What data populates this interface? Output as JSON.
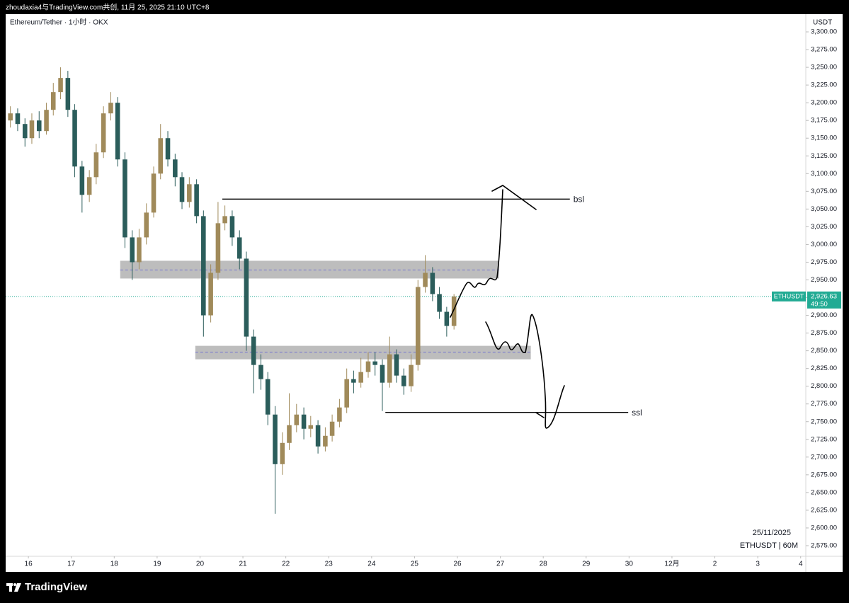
{
  "header": "zhoudaxia4与TradingView.com共创, 11月 25, 2025 21:10 UTC+8",
  "footer": "TradingView",
  "chart_data": {
    "type": "candlestick",
    "title": "Ethereum/Tether · 1小时 · OKX",
    "y_axis_label": "USDT",
    "date_label": "25/11/2025",
    "symbol_label": "ETHUSDT | 60M",
    "up_color": "#a08a5a",
    "down_color": "#2b5d5b",
    "x": [
      15.58,
      15.75,
      15.92,
      16.08,
      16.25,
      16.42,
      16.58,
      16.75,
      16.92,
      17.08,
      17.25,
      17.42,
      17.58,
      17.75,
      17.92,
      18.08,
      18.25,
      18.42,
      18.58,
      18.75,
      18.92,
      19.08,
      19.25,
      19.42,
      19.58,
      19.75,
      19.92,
      20.08,
      20.25,
      20.42,
      20.58,
      20.75,
      20.92,
      21.08,
      21.25,
      21.42,
      21.58,
      21.75,
      21.92,
      22.08,
      22.25,
      22.42,
      22.58,
      22.75,
      22.92,
      23.08,
      23.25,
      23.42,
      23.58,
      23.75,
      23.92,
      24.08,
      24.25,
      24.42,
      24.58,
      24.75,
      24.92,
      25.08,
      25.25,
      25.42,
      25.58,
      25.75,
      25.92
    ],
    "open": [
      3175,
      3185,
      3170,
      3150,
      3175,
      3160,
      3190,
      3215,
      3235,
      3190,
      3110,
      3070,
      3095,
      3130,
      3185,
      3200,
      3120,
      3010,
      2975,
      3010,
      3045,
      3100,
      3150,
      3120,
      3095,
      3060,
      3085,
      3040,
      2900,
      2960,
      3030,
      3040,
      3010,
      2980,
      2870,
      2830,
      2810,
      2760,
      2690,
      2720,
      2745,
      2760,
      2740,
      2745,
      2715,
      2730,
      2750,
      2770,
      2810,
      2805,
      2820,
      2835,
      2830,
      2805,
      2845,
      2815,
      2800,
      2830,
      2940,
      2960,
      2930,
      2905,
      2885
    ],
    "high": [
      3195,
      3192,
      3178,
      3185,
      3188,
      3200,
      3228,
      3250,
      3245,
      3198,
      3118,
      3105,
      3142,
      3195,
      3215,
      3208,
      3130,
      3020,
      3022,
      3058,
      3110,
      3170,
      3160,
      3128,
      3102,
      3095,
      3092,
      3048,
      2972,
      3060,
      3055,
      3048,
      3020,
      2990,
      2880,
      2845,
      2820,
      2772,
      2735,
      2790,
      2775,
      2770,
      2758,
      2752,
      2742,
      2760,
      2782,
      2825,
      2822,
      2840,
      2848,
      2848,
      2838,
      2870,
      2852,
      2825,
      2845,
      2950,
      2985,
      2968,
      2940,
      2912,
      2930
    ],
    "low": [
      3165,
      3160,
      3138,
      3142,
      3150,
      3155,
      3182,
      3205,
      3180,
      3095,
      3045,
      3060,
      3085,
      3122,
      3175,
      3110,
      2995,
      2950,
      2965,
      3000,
      3038,
      3092,
      3110,
      3082,
      3050,
      3052,
      3030,
      2870,
      2890,
      2950,
      3020,
      2998,
      2965,
      2850,
      2790,
      2795,
      2745,
      2620,
      2675,
      2710,
      2735,
      2725,
      2728,
      2705,
      2708,
      2722,
      2742,
      2762,
      2790,
      2798,
      2812,
      2815,
      2765,
      2798,
      2805,
      2788,
      2792,
      2822,
      2932,
      2920,
      2895,
      2870,
      2880
    ],
    "close": [
      3185,
      3170,
      3150,
      3175,
      3160,
      3190,
      3215,
      3235,
      3190,
      3110,
      3070,
      3095,
      3130,
      3185,
      3200,
      3120,
      3010,
      2975,
      3010,
      3045,
      3100,
      3150,
      3120,
      3095,
      3060,
      3085,
      3040,
      2900,
      2960,
      3030,
      3040,
      3010,
      2980,
      2870,
      2830,
      2810,
      2760,
      2690,
      2720,
      2745,
      2760,
      2740,
      2745,
      2715,
      2730,
      2750,
      2770,
      2810,
      2805,
      2820,
      2835,
      2830,
      2805,
      2845,
      2815,
      2800,
      2830,
      2940,
      2960,
      2930,
      2905,
      2885,
      2926.63
    ],
    "last_price": {
      "value": 2926.63,
      "label": "2,926.63"
    },
    "symbol_tag": "ETHUSDT",
    "countdown": "49:50",
    "zones": [
      {
        "x": [
          18.14,
          26.97
        ],
        "y": [
          2952,
          2977
        ],
        "mid": 2964
      },
      {
        "x": [
          19.89,
          27.71
        ],
        "y": [
          2838,
          2857
        ],
        "mid": 2848
      }
    ],
    "levels": [
      {
        "label": "bsl",
        "value": 3064,
        "x": [
          20.52,
          28.62
        ]
      },
      {
        "label": "ssl",
        "value": 2763,
        "x": [
          24.32,
          29.98
        ]
      }
    ],
    "xlim": [
      15.47,
      34.12
    ],
    "ylim": [
      2560,
      3325
    ],
    "xticks": [
      16,
      17,
      18,
      19,
      20,
      21,
      22,
      23,
      24,
      25,
      26,
      27,
      28,
      29,
      30,
      {
        "value": 31,
        "label": "12月"
      },
      {
        "value": 32,
        "label": "2"
      },
      {
        "value": 33,
        "label": "3"
      },
      {
        "value": 34,
        "label": "4"
      }
    ],
    "yticks": [
      {
        "value": 2575,
        "label": "2,575.00"
      },
      {
        "value": 2600,
        "label": "2,600.00"
      },
      {
        "value": 2625,
        "label": "2,625.00"
      },
      {
        "value": 2650,
        "label": "2,650.00"
      },
      {
        "value": 2675,
        "label": "2,675.00"
      },
      {
        "value": 2700,
        "label": "2,700.00"
      },
      {
        "value": 2725,
        "label": "2,725.00"
      },
      {
        "value": 2750,
        "label": "2,750.00"
      },
      {
        "value": 2775,
        "label": "2,775.00"
      },
      {
        "value": 2800,
        "label": "2,800.00"
      },
      {
        "value": 2825,
        "label": "2,825.00"
      },
      {
        "value": 2850,
        "label": "2,850.00"
      },
      {
        "value": 2875,
        "label": "2,875.00"
      },
      {
        "value": 2900,
        "label": "2,900.00"
      },
      {
        "value": 2925,
        "label": "2,925.00"
      },
      {
        "value": 2950,
        "label": "2,950.00"
      },
      {
        "value": 2975,
        "label": "2,975.00"
      },
      {
        "value": 3000,
        "label": "3,000.00"
      },
      {
        "value": 3025,
        "label": "3,025.00"
      },
      {
        "value": 3050,
        "label": "3,050.00"
      },
      {
        "value": 3075,
        "label": "3,075.00"
      },
      {
        "value": 3100,
        "label": "3,100.00"
      },
      {
        "value": 3125,
        "label": "3,125.00"
      },
      {
        "value": 3150,
        "label": "3,150.00"
      },
      {
        "value": 3175,
        "label": "3,175.00"
      },
      {
        "value": 3200,
        "label": "3,200.00"
      },
      {
        "value": 3225,
        "label": "3,225.00"
      },
      {
        "value": 3250,
        "label": "3,250.00"
      },
      {
        "value": 3275,
        "label": "3,275.00"
      },
      {
        "value": 3300,
        "label": "3,300.00"
      }
    ]
  }
}
